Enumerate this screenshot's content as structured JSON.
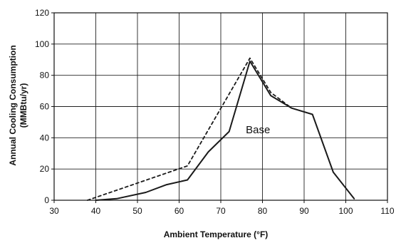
{
  "chart_data": {
    "type": "line",
    "xlabel": "Ambient Temperature (°F)",
    "ylabel_line1": "Annual Cooling Consumption",
    "ylabel_line2": "(MMBtu/yr)",
    "xlim": [
      30,
      110
    ],
    "ylim": [
      0,
      120
    ],
    "grid": true,
    "x_ticks": [
      "30",
      "40",
      "50",
      "60",
      "70",
      "80",
      "90",
      "100",
      "110"
    ],
    "y_ticks": [
      "0",
      "20",
      "40",
      "60",
      "80",
      "100",
      "120"
    ],
    "series": [
      {
        "style": "solid",
        "color": "#1a1a1a",
        "x": [
          40,
          45,
          52,
          57,
          62,
          67,
          72,
          77,
          82,
          87,
          92,
          97,
          102
        ],
        "y": [
          0,
          1,
          5,
          10,
          13,
          31,
          44,
          89,
          67,
          59,
          55,
          18,
          1
        ]
      },
      {
        "style": "dashed",
        "color": "#1a1a1a",
        "x": [
          38,
          62,
          77,
          82,
          87
        ],
        "y": [
          0,
          22,
          91,
          69,
          59
        ]
      }
    ],
    "annotations": [
      {
        "text": "Base",
        "x": 76,
        "y": 43
      }
    ]
  }
}
